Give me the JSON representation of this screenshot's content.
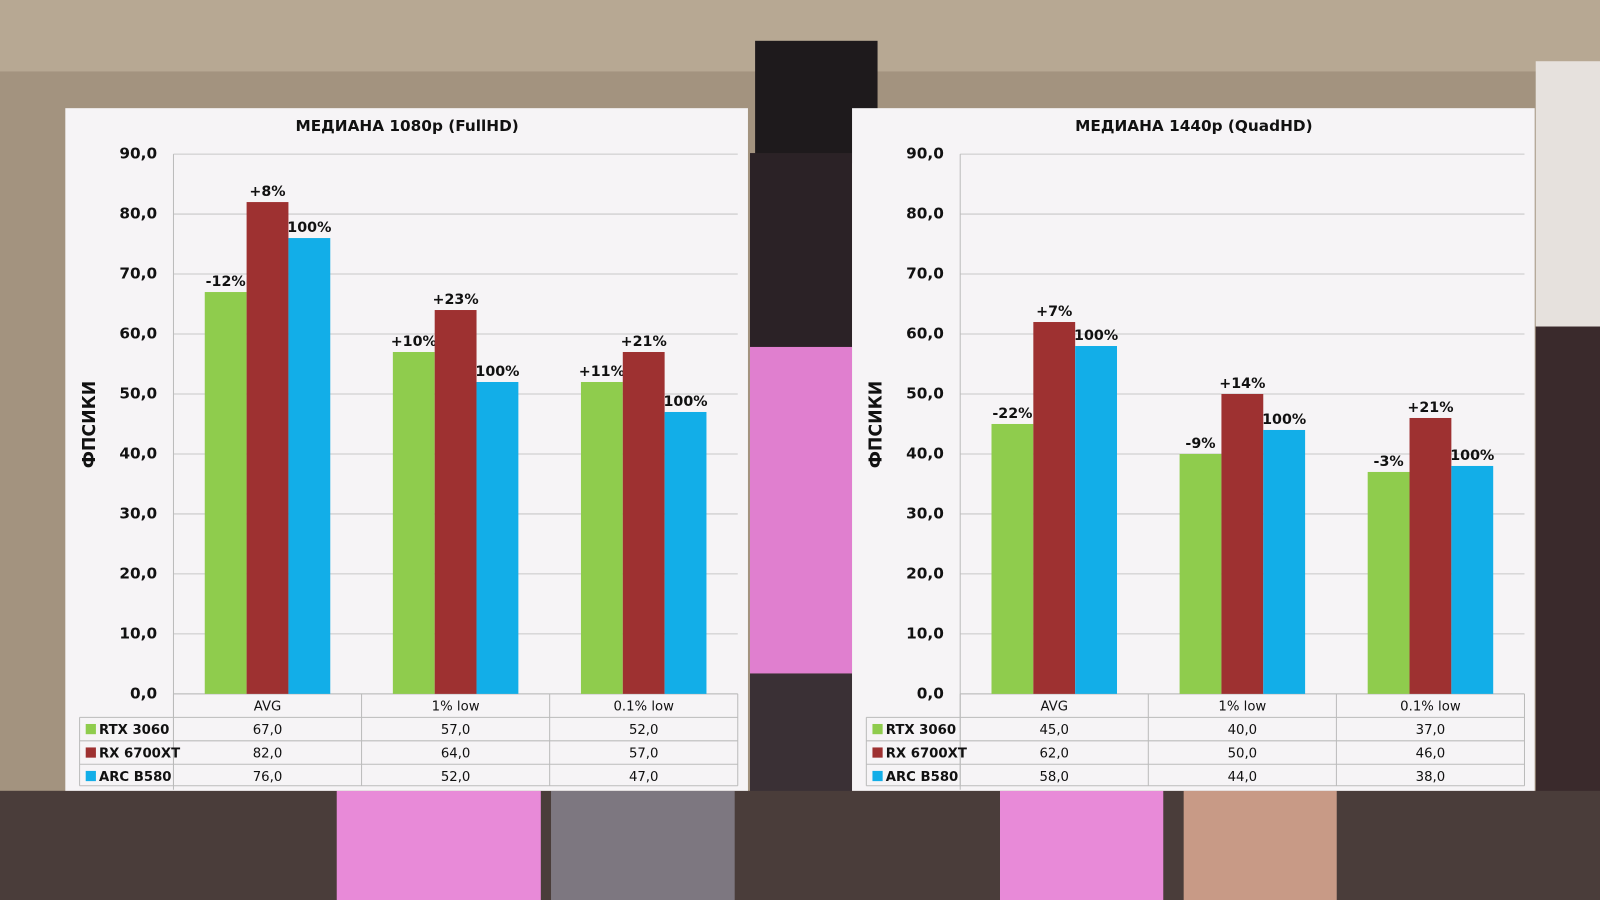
{
  "chart_data": [
    {
      "type": "bar",
      "title": "МЕДИАНА 1080p (FullHD)",
      "y_label": "ФПСИКИ",
      "categories": [
        "AVG",
        "1% low",
        "0.1% low"
      ],
      "series": [
        {
          "name": "RTX 3060",
          "color": "#8fcc4d",
          "values": [
            67,
            57,
            52
          ],
          "value_labels": [
            "67,0",
            "57,0",
            "52,0"
          ],
          "annotations": [
            "-12%",
            "+10%",
            "+11%"
          ]
        },
        {
          "name": "RX 6700XT",
          "color": "#9e3131",
          "values": [
            82,
            64,
            57
          ],
          "value_labels": [
            "82,0",
            "64,0",
            "57,0"
          ],
          "annotations": [
            "+8%",
            "+23%",
            "+21%"
          ]
        },
        {
          "name": "ARC B580",
          "color": "#12aee8",
          "values": [
            76,
            52,
            47
          ],
          "value_labels": [
            "76,0",
            "52,0",
            "47,0"
          ],
          "annotations": [
            "100%",
            "100%",
            "100%"
          ]
        }
      ],
      "ylim": [
        0,
        90
      ],
      "yticks": [
        {
          "value": 0,
          "label": "0,0"
        },
        {
          "value": 10,
          "label": "10,0"
        },
        {
          "value": 20,
          "label": "20,0"
        },
        {
          "value": 30,
          "label": "30,0"
        },
        {
          "value": 40,
          "label": "40,0"
        },
        {
          "value": 50,
          "label": "50,0"
        },
        {
          "value": 60,
          "label": "60,0"
        },
        {
          "value": 70,
          "label": "70,0"
        },
        {
          "value": 80,
          "label": "80,0"
        },
        {
          "value": 90,
          "label": "90,0"
        }
      ],
      "grid": true
    },
    {
      "type": "bar",
      "title": "МЕДИАНА 1440p (QuadHD)",
      "y_label": "ФПСИКИ",
      "categories": [
        "AVG",
        "1% low",
        "0.1% low"
      ],
      "series": [
        {
          "name": "RTX 3060",
          "color": "#8fcc4d",
          "values": [
            45,
            40,
            37
          ],
          "value_labels": [
            "45,0",
            "40,0",
            "37,0"
          ],
          "annotations": [
            "-22%",
            "-9%",
            "-3%"
          ]
        },
        {
          "name": "RX 6700XT",
          "color": "#9e3131",
          "values": [
            62,
            50,
            46
          ],
          "value_labels": [
            "62,0",
            "50,0",
            "46,0"
          ],
          "annotations": [
            "+7%",
            "+14%",
            "+21%"
          ]
        },
        {
          "name": "ARC B580",
          "color": "#12aee8",
          "values": [
            58,
            44,
            38
          ],
          "value_labels": [
            "58,0",
            "44,0",
            "38,0"
          ],
          "annotations": [
            "100%",
            "100%",
            "100%"
          ]
        }
      ],
      "ylim": [
        0,
        90
      ],
      "yticks": [
        {
          "value": 0,
          "label": "0,0"
        },
        {
          "value": 10,
          "label": "10,0"
        },
        {
          "value": 20,
          "label": "20,0"
        },
        {
          "value": 30,
          "label": "30,0"
        },
        {
          "value": 40,
          "label": "40,0"
        },
        {
          "value": 50,
          "label": "50,0"
        },
        {
          "value": 60,
          "label": "60,0"
        },
        {
          "value": 70,
          "label": "70,0"
        },
        {
          "value": 80,
          "label": "80,0"
        },
        {
          "value": 90,
          "label": "90,0"
        }
      ],
      "grid": true
    }
  ]
}
